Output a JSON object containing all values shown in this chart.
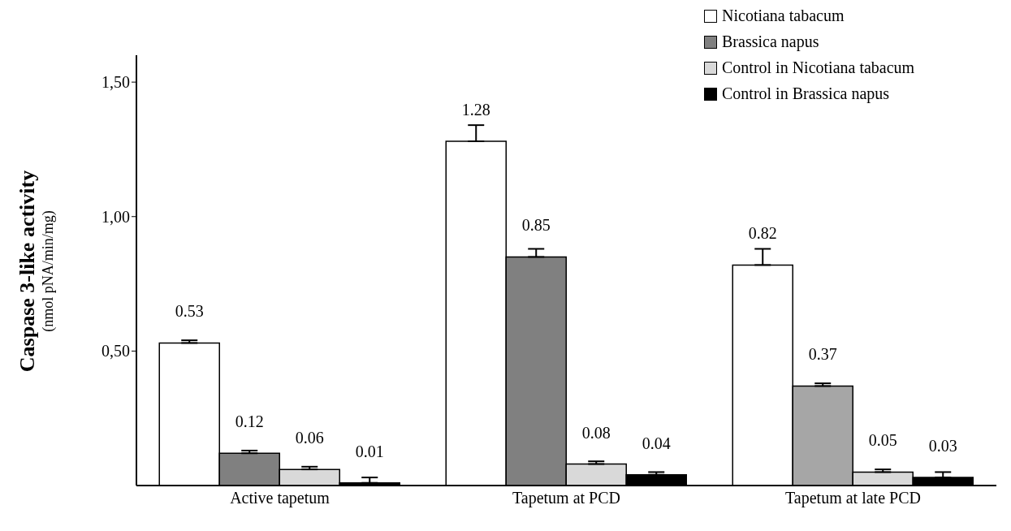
{
  "chart_data": {
    "type": "bar",
    "ylabel": "Caspase 3-like activity\n(nmol pNA/min/mg)",
    "categories": [
      "Active tapetum",
      "Tapetum at PCD",
      "Tapetum at late PCD"
    ],
    "series": [
      {
        "name": "Nicotiana tabacum",
        "color": "#ffffff",
        "values": [
          0.53,
          1.28,
          0.82
        ],
        "errors": [
          [
            0.53,
            0.54
          ],
          [
            1.28,
            1.34
          ],
          [
            0.82,
            0.88
          ]
        ]
      },
      {
        "name": "Brassica napus",
        "color": "#808080",
        "colors": [
          "#808080",
          "#808080",
          "#a6a6a6"
        ],
        "values": [
          0.12,
          0.85,
          0.37
        ],
        "errors": [
          [
            0.12,
            0.13
          ],
          [
            0.85,
            0.88
          ],
          [
            0.37,
            0.38
          ]
        ]
      },
      {
        "name": "Control in Nicotiana tabacum",
        "color": "#d9d9d9",
        "values": [
          0.06,
          0.08,
          0.05
        ],
        "errors": [
          [
            0.06,
            0.07
          ],
          [
            0.08,
            0.09
          ],
          [
            0.05,
            0.06
          ]
        ]
      },
      {
        "name": "Control in Brassica napus",
        "color": "#000000",
        "values": [
          0.01,
          0.04,
          0.03
        ],
        "errors": [
          [
            0.01,
            0.03
          ],
          [
            0.04,
            0.05
          ],
          [
            0.03,
            0.05
          ]
        ]
      }
    ],
    "ylim": [
      0,
      1.6
    ],
    "yticks": [
      {
        "value": 0.5,
        "label": "0,50"
      },
      {
        "value": 1,
        "label": "1,00"
      },
      {
        "value": 1.5,
        "label": "1,50"
      }
    ],
    "data_labels": true,
    "legend": "top right",
    "grid": false
  }
}
